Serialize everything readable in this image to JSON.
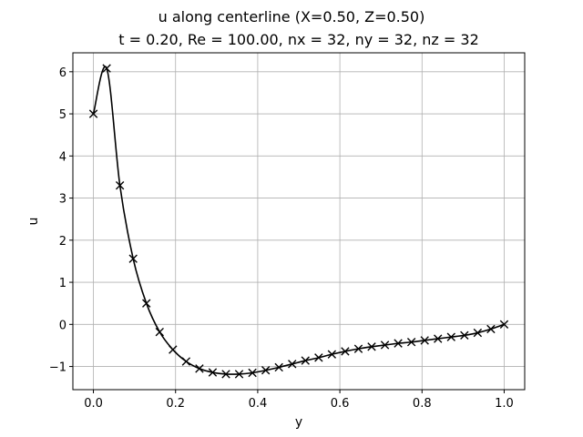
{
  "chart_data": {
    "type": "line",
    "title": "u along centerline (X=0.50, Z=0.50)",
    "subtitle": "t = 0.20, Re = 100.00, nx = 32, ny = 32, nz = 32",
    "xlabel": "y",
    "ylabel": "u",
    "xlim": [
      -0.05,
      1.05
    ],
    "ylim": [
      -1.55,
      6.45
    ],
    "xticks": [
      0.0,
      0.2,
      0.4,
      0.6,
      0.8,
      1.0
    ],
    "xtick_labels": [
      "0.0",
      "0.2",
      "0.4",
      "0.6",
      "0.8",
      "1.0"
    ],
    "yticks": [
      -1,
      0,
      1,
      2,
      3,
      4,
      5,
      6
    ],
    "ytick_labels": [
      "−1",
      "0",
      "1",
      "2",
      "3",
      "4",
      "5",
      "6"
    ],
    "grid": true,
    "line_color": "#000000",
    "marker": "x",
    "series": [
      {
        "x": [
          0.0,
          0.0323,
          0.0645,
          0.0968,
          0.129,
          0.1613,
          0.1935,
          0.2258,
          0.2581,
          0.2903,
          0.3226,
          0.3548,
          0.3871,
          0.4194,
          0.4516,
          0.4839,
          0.5161,
          0.5484,
          0.5806,
          0.6129,
          0.6452,
          0.6774,
          0.7097,
          0.7419,
          0.7742,
          0.8065,
          0.8387,
          0.871,
          0.9032,
          0.9355,
          0.9677,
          1.0
        ],
        "values": [
          5.0,
          6.08,
          3.3,
          1.56,
          0.5,
          -0.18,
          -0.6,
          -0.88,
          -1.05,
          -1.14,
          -1.18,
          -1.18,
          -1.15,
          -1.09,
          -1.02,
          -0.94,
          -0.86,
          -0.79,
          -0.71,
          -0.64,
          -0.58,
          -0.53,
          -0.49,
          -0.45,
          -0.42,
          -0.38,
          -0.34,
          -0.3,
          -0.26,
          -0.2,
          -0.11,
          0.0
        ]
      }
    ]
  }
}
